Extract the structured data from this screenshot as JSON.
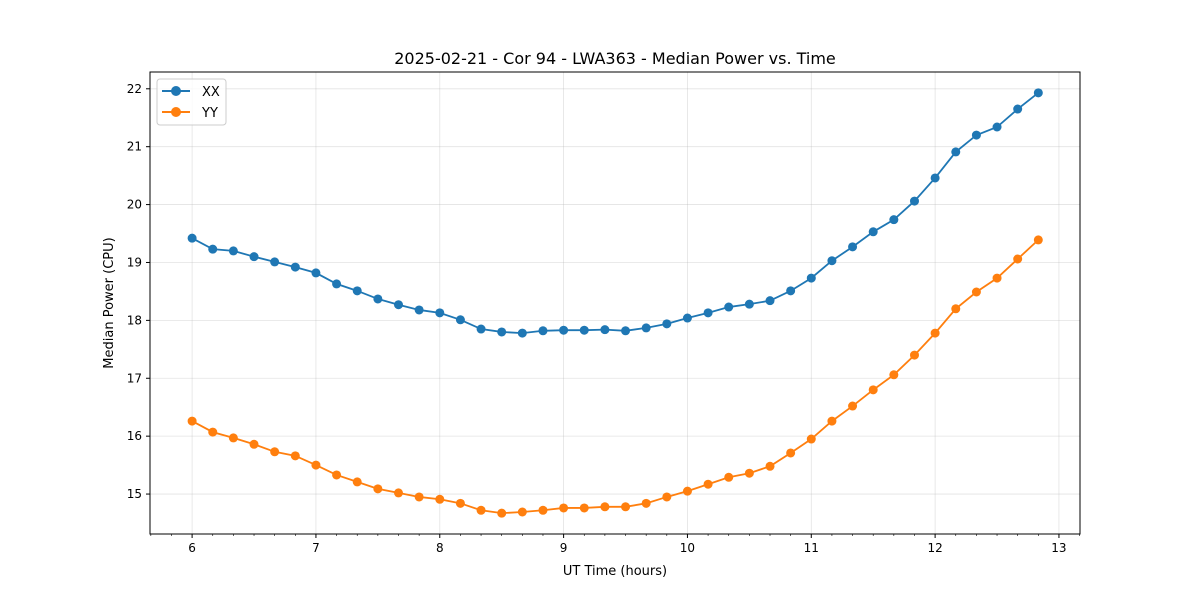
{
  "chart_data": {
    "type": "line",
    "title": "2025-02-21 - Cor 94 - LWA363 - Median Power vs. Time",
    "xlabel": "UT Time (hours)",
    "ylabel": "Median Power (CPU)",
    "xlim": [
      5.66,
      13.17
    ],
    "ylim": [
      14.31,
      22.29
    ],
    "xticks": [
      6,
      7,
      8,
      9,
      10,
      11,
      12,
      13
    ],
    "yticks": [
      15,
      16,
      17,
      18,
      19,
      20,
      21,
      22
    ],
    "grid": true,
    "legend_position": "top-left",
    "x_start": 6,
    "x_step_hours": 0.16667,
    "series": [
      {
        "name": "XX",
        "color": "#1f77b4",
        "values": [
          19.42,
          19.23,
          19.2,
          19.1,
          19.01,
          18.92,
          18.82,
          18.63,
          18.51,
          18.37,
          18.27,
          18.18,
          18.13,
          18.01,
          17.85,
          17.8,
          17.78,
          17.82,
          17.83,
          17.83,
          17.84,
          17.82,
          17.87,
          17.94,
          18.04,
          18.13,
          18.23,
          18.28,
          18.34,
          18.51,
          18.73,
          19.03,
          19.27,
          19.53,
          19.74,
          20.06,
          20.46,
          20.91,
          21.2,
          21.34,
          21.65,
          21.93
        ]
      },
      {
        "name": "YY",
        "color": "#ff7f0e",
        "values": [
          16.26,
          16.07,
          15.97,
          15.86,
          15.73,
          15.66,
          15.5,
          15.33,
          15.21,
          15.09,
          15.02,
          14.95,
          14.91,
          14.84,
          14.72,
          14.67,
          14.69,
          14.72,
          14.76,
          14.76,
          14.78,
          14.78,
          14.84,
          14.95,
          15.05,
          15.17,
          15.29,
          15.36,
          15.48,
          15.71,
          15.95,
          16.26,
          16.52,
          16.8,
          17.06,
          17.4,
          17.78,
          18.2,
          18.49,
          18.73,
          19.06,
          19.39
        ]
      }
    ]
  }
}
